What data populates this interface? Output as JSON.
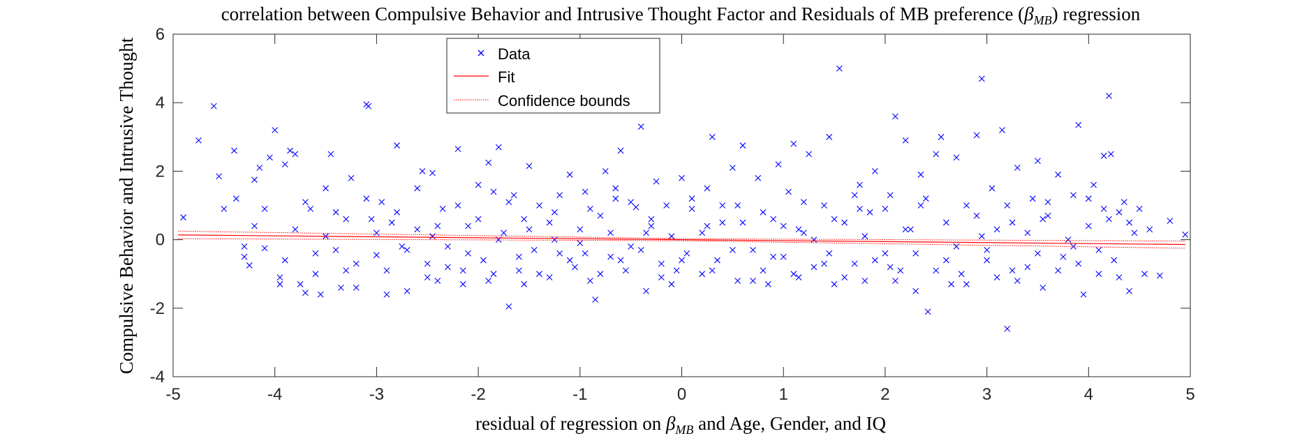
{
  "chart_data": {
    "type": "scatter",
    "title": "correlation between Compulsive Behavior and Intrusive Thought Factor and Residuals of MB preference (β_MB) regression",
    "title_parts": {
      "main": "correlation between Compulsive Behavior and Intrusive Thought Factor and Residuals of MB preference (",
      "beta": "β",
      "sub": "MB",
      "tail": ") regression"
    },
    "xlabel": "residual of regression on β_MB and Age, Gender, and IQ",
    "xlabel_parts": {
      "main": "residual of regression on ",
      "beta": "β",
      "sub": "MB",
      "tail": " and Age, Gender, and IQ"
    },
    "ylabel": "Compulsive Behavior and Intrusive Thought",
    "xlim": [
      -5,
      5
    ],
    "ylim": [
      -4,
      6
    ],
    "xticks": [
      -5,
      -4,
      -3,
      -2,
      -1,
      0,
      1,
      2,
      3,
      4,
      5
    ],
    "yticks": [
      -4,
      -2,
      0,
      2,
      4,
      6
    ],
    "xtick_labels": [
      "-5",
      "-4",
      "-3",
      "-2",
      "-1",
      "0",
      "1",
      "2",
      "3",
      "4",
      "5"
    ],
    "ytick_labels": [
      "-4",
      "-2",
      "0",
      "2",
      "4",
      "6"
    ],
    "grid": false,
    "legend": {
      "placement": "top-left",
      "entries": [
        "Data",
        "Fit",
        "Confidence bounds"
      ]
    },
    "colors": {
      "data": "#0000ff",
      "fit": "#ff0000",
      "bounds": "#ff0000"
    },
    "series": [
      {
        "name": "Data",
        "marker": "x",
        "points": [
          [
            -4.9,
            0.65
          ],
          [
            -4.75,
            2.9
          ],
          [
            -4.6,
            3.9
          ],
          [
            -4.55,
            1.85
          ],
          [
            -4.5,
            0.9
          ],
          [
            -4.4,
            2.6
          ],
          [
            -4.38,
            1.2
          ],
          [
            -4.3,
            -0.5
          ],
          [
            -4.25,
            -0.75
          ],
          [
            -4.2,
            1.75
          ],
          [
            -4.15,
            2.1
          ],
          [
            -4.1,
            -0.25
          ],
          [
            -4.05,
            2.4
          ],
          [
            -4.0,
            3.2
          ],
          [
            -3.95,
            -1.1
          ],
          [
            -3.9,
            2.2
          ],
          [
            -3.85,
            2.6
          ],
          [
            -3.8,
            2.5
          ],
          [
            -3.75,
            -1.3
          ],
          [
            -3.7,
            -1.55
          ],
          [
            -3.6,
            -0.4
          ],
          [
            -3.55,
            -1.6
          ],
          [
            -3.5,
            1.5
          ],
          [
            -3.45,
            2.5
          ],
          [
            -3.4,
            0.8
          ],
          [
            -3.3,
            -0.9
          ],
          [
            -3.25,
            1.8
          ],
          [
            -3.2,
            -1.4
          ],
          [
            -3.1,
            3.95
          ],
          [
            -3.08,
            3.9
          ],
          [
            -3.0,
            -0.45
          ],
          [
            -2.95,
            1.1
          ],
          [
            -2.9,
            -1.6
          ],
          [
            -2.85,
            0.5
          ],
          [
            -2.8,
            2.75
          ],
          [
            -2.7,
            -1.5
          ],
          [
            -2.6,
            0.3
          ],
          [
            -2.55,
            2.0
          ],
          [
            -2.5,
            -0.7
          ],
          [
            -2.45,
            1.95
          ],
          [
            -2.4,
            -1.2
          ],
          [
            -2.35,
            0.9
          ],
          [
            -2.3,
            -0.2
          ],
          [
            -2.2,
            2.65
          ],
          [
            -2.15,
            -1.3
          ],
          [
            -2.1,
            0.4
          ],
          [
            -2.0,
            1.6
          ],
          [
            -1.95,
            -0.6
          ],
          [
            -1.9,
            2.25
          ],
          [
            -1.85,
            -1.0
          ],
          [
            -1.8,
            2.7
          ],
          [
            -1.75,
            0.2
          ],
          [
            -1.7,
            -1.95
          ],
          [
            -1.65,
            1.3
          ],
          [
            -1.6,
            -0.9
          ],
          [
            -1.55,
            0.6
          ],
          [
            -1.5,
            2.15
          ],
          [
            -1.45,
            -0.3
          ],
          [
            -1.4,
            1.0
          ],
          [
            -1.3,
            -1.1
          ],
          [
            -1.25,
            0.8
          ],
          [
            -1.2,
            -0.4
          ],
          [
            -1.1,
            1.9
          ],
          [
            -1.05,
            -0.8
          ],
          [
            -1.0,
            0.3
          ],
          [
            -0.95,
            1.4
          ],
          [
            -0.9,
            -1.2
          ],
          [
            -0.85,
            -1.75
          ],
          [
            -0.8,
            0.7
          ],
          [
            -0.75,
            2.0
          ],
          [
            -0.7,
            -0.5
          ],
          [
            -0.65,
            1.2
          ],
          [
            -0.6,
            2.6
          ],
          [
            -0.55,
            -0.9
          ],
          [
            -0.5,
            -0.2
          ],
          [
            -0.45,
            0.95
          ],
          [
            -0.4,
            3.3
          ],
          [
            -0.35,
            -1.5
          ],
          [
            -0.3,
            0.4
          ],
          [
            -0.25,
            1.7
          ],
          [
            -0.2,
            -0.7
          ],
          [
            -0.15,
            1.0
          ],
          [
            -0.1,
            -1.3
          ],
          [
            0.0,
            1.8
          ],
          [
            0.05,
            -0.4
          ],
          [
            0.1,
            0.9
          ],
          [
            0.2,
            -1.0
          ],
          [
            0.25,
            1.5
          ],
          [
            0.3,
            3.0
          ],
          [
            0.35,
            -0.6
          ],
          [
            0.4,
            0.5
          ],
          [
            0.5,
            2.1
          ],
          [
            0.55,
            -1.2
          ],
          [
            0.6,
            2.75
          ],
          [
            0.7,
            -0.3
          ],
          [
            0.75,
            1.8
          ],
          [
            0.8,
            -0.9
          ],
          [
            0.9,
            0.6
          ],
          [
            0.95,
            2.2
          ],
          [
            1.0,
            -0.5
          ],
          [
            1.05,
            1.4
          ],
          [
            1.1,
            2.8
          ],
          [
            1.15,
            -1.1
          ],
          [
            1.2,
            0.2
          ],
          [
            1.25,
            2.5
          ],
          [
            1.3,
            -0.8
          ],
          [
            1.4,
            1.0
          ],
          [
            1.45,
            3.0
          ],
          [
            1.5,
            -1.3
          ],
          [
            1.55,
            5.0
          ],
          [
            1.6,
            0.5
          ],
          [
            1.7,
            -0.7
          ],
          [
            1.75,
            1.6
          ],
          [
            1.8,
            -1.2
          ],
          [
            1.85,
            0.8
          ],
          [
            1.9,
            2.0
          ],
          [
            2.0,
            -0.4
          ],
          [
            2.05,
            1.3
          ],
          [
            2.1,
            3.6
          ],
          [
            2.15,
            -0.9
          ],
          [
            2.2,
            2.9
          ],
          [
            2.25,
            0.3
          ],
          [
            2.3,
            -1.5
          ],
          [
            2.35,
            1.9
          ],
          [
            2.42,
            -2.1
          ],
          [
            2.5,
            2.5
          ],
          [
            2.55,
            3.0
          ],
          [
            2.6,
            -0.6
          ],
          [
            2.7,
            2.4
          ],
          [
            2.75,
            -1.0
          ],
          [
            2.8,
            1.0
          ],
          [
            2.9,
            3.05
          ],
          [
            2.95,
            4.7
          ],
          [
            3.0,
            -0.3
          ],
          [
            3.05,
            1.5
          ],
          [
            3.1,
            -1.1
          ],
          [
            3.15,
            3.2
          ],
          [
            3.2,
            -2.6
          ],
          [
            3.25,
            0.5
          ],
          [
            3.3,
            2.1
          ],
          [
            3.4,
            -0.8
          ],
          [
            3.45,
            1.2
          ],
          [
            3.5,
            2.3
          ],
          [
            3.55,
            -1.4
          ],
          [
            3.6,
            0.7
          ],
          [
            3.7,
            1.9
          ],
          [
            3.75,
            -0.5
          ],
          [
            3.85,
            1.3
          ],
          [
            3.9,
            3.35
          ],
          [
            3.95,
            -1.6
          ],
          [
            4.0,
            0.4
          ],
          [
            4.05,
            1.6
          ],
          [
            4.1,
            -1.0
          ],
          [
            4.15,
            2.45
          ],
          [
            4.2,
            4.2
          ],
          [
            4.22,
            2.5
          ],
          [
            4.25,
            -0.6
          ],
          [
            4.3,
            0.8
          ],
          [
            4.35,
            1.1
          ],
          [
            4.4,
            -1.5
          ],
          [
            4.45,
            0.2
          ],
          [
            4.5,
            0.9
          ],
          [
            4.55,
            -1.0
          ],
          [
            4.6,
            0.3
          ],
          [
            4.7,
            -1.05
          ],
          [
            4.8,
            0.55
          ],
          [
            4.95,
            0.15
          ],
          [
            -4.3,
            -0.2
          ],
          [
            -4.2,
            0.4
          ],
          [
            -4.1,
            0.9
          ],
          [
            -3.9,
            -0.6
          ],
          [
            -3.8,
            0.3
          ],
          [
            -3.7,
            1.1
          ],
          [
            -3.6,
            -1.0
          ],
          [
            -3.5,
            0.1
          ],
          [
            -3.4,
            -0.3
          ],
          [
            -3.3,
            0.6
          ],
          [
            -3.2,
            -0.7
          ],
          [
            -3.1,
            1.2
          ],
          [
            -3.0,
            0.2
          ],
          [
            -2.9,
            -0.9
          ],
          [
            -2.8,
            0.8
          ],
          [
            -2.7,
            -0.3
          ],
          [
            -2.6,
            1.5
          ],
          [
            -2.5,
            -1.1
          ],
          [
            -2.4,
            0.4
          ],
          [
            -2.3,
            -0.8
          ],
          [
            -2.2,
            1.0
          ],
          [
            -2.1,
            -0.4
          ],
          [
            -2.0,
            0.6
          ],
          [
            -1.9,
            -1.2
          ],
          [
            -1.8,
            0.0
          ],
          [
            -1.7,
            1.1
          ],
          [
            -1.6,
            -0.5
          ],
          [
            -1.5,
            0.3
          ],
          [
            -1.4,
            -1.0
          ],
          [
            -1.3,
            0.5
          ],
          [
            -1.2,
            1.3
          ],
          [
            -1.1,
            -0.6
          ],
          [
            -1.0,
            -0.1
          ],
          [
            -0.9,
            0.9
          ],
          [
            -0.8,
            -1.0
          ],
          [
            -0.7,
            0.2
          ],
          [
            -0.6,
            -0.6
          ],
          [
            -0.5,
            1.1
          ],
          [
            -0.4,
            -0.3
          ],
          [
            -0.3,
            0.6
          ],
          [
            -0.2,
            -1.1
          ],
          [
            -0.1,
            0.1
          ],
          [
            0.0,
            -0.6
          ],
          [
            0.1,
            1.2
          ],
          [
            0.2,
            0.2
          ],
          [
            0.3,
            -0.9
          ],
          [
            0.4,
            1.0
          ],
          [
            0.5,
            -0.3
          ],
          [
            0.6,
            0.5
          ],
          [
            0.7,
            -1.2
          ],
          [
            0.8,
            0.8
          ],
          [
            0.9,
            -0.5
          ],
          [
            1.0,
            0.4
          ],
          [
            1.1,
            -1.0
          ],
          [
            1.2,
            1.1
          ],
          [
            1.3,
            0.0
          ],
          [
            1.4,
            -0.7
          ],
          [
            1.5,
            0.6
          ],
          [
            1.6,
            -1.1
          ],
          [
            1.7,
            1.3
          ],
          [
            1.8,
            0.1
          ],
          [
            1.9,
            -0.6
          ],
          [
            2.0,
            0.9
          ],
          [
            2.1,
            -1.2
          ],
          [
            2.2,
            0.3
          ],
          [
            2.3,
            -0.4
          ],
          [
            2.4,
            1.2
          ],
          [
            2.5,
            -0.9
          ],
          [
            2.6,
            0.5
          ],
          [
            2.7,
            -0.2
          ],
          [
            2.8,
            -1.3
          ],
          [
            2.9,
            0.7
          ],
          [
            3.0,
            -0.6
          ],
          [
            3.1,
            0.3
          ],
          [
            3.2,
            1.0
          ],
          [
            3.3,
            -1.2
          ],
          [
            3.4,
            0.2
          ],
          [
            3.5,
            -0.4
          ],
          [
            3.6,
            1.1
          ],
          [
            3.7,
            -0.9
          ],
          [
            3.8,
            0.0
          ],
          [
            3.9,
            -0.7
          ],
          [
            4.0,
            1.2
          ],
          [
            4.1,
            -0.3
          ],
          [
            4.2,
            0.6
          ],
          [
            4.3,
            -1.1
          ],
          [
            4.4,
            0.5
          ],
          [
            -3.95,
            -1.3
          ],
          [
            -3.65,
            0.9
          ],
          [
            -3.35,
            -1.4
          ],
          [
            -3.05,
            0.6
          ],
          [
            -2.75,
            -0.2
          ],
          [
            -2.45,
            0.1
          ],
          [
            -2.15,
            -0.9
          ],
          [
            -1.85,
            1.4
          ],
          [
            -1.55,
            -1.3
          ],
          [
            -1.25,
            0.0
          ],
          [
            -0.95,
            -0.4
          ],
          [
            -0.65,
            1.5
          ],
          [
            -0.35,
            0.2
          ],
          [
            -0.05,
            -0.9
          ],
          [
            0.25,
            0.4
          ],
          [
            0.55,
            1.0
          ],
          [
            0.85,
            -1.3
          ],
          [
            1.15,
            0.3
          ],
          [
            1.45,
            -0.4
          ],
          [
            1.75,
            0.9
          ],
          [
            2.05,
            -0.8
          ],
          [
            2.35,
            1.0
          ],
          [
            2.65,
            -1.3
          ],
          [
            2.95,
            0.1
          ],
          [
            3.25,
            -0.9
          ],
          [
            3.55,
            0.6
          ],
          [
            3.85,
            -0.2
          ],
          [
            4.15,
            0.9
          ]
        ]
      },
      {
        "name": "Fit",
        "line": [
          [
            -4.95,
            0.14
          ],
          [
            4.95,
            -0.14
          ]
        ]
      },
      {
        "name": "Confidence bounds",
        "upper": [
          [
            -4.95,
            0.25
          ],
          [
            0.0,
            0.03
          ],
          [
            4.95,
            -0.04
          ]
        ],
        "lower": [
          [
            -4.95,
            0.03
          ],
          [
            0.0,
            -0.03
          ],
          [
            4.95,
            -0.25
          ]
        ]
      }
    ]
  }
}
